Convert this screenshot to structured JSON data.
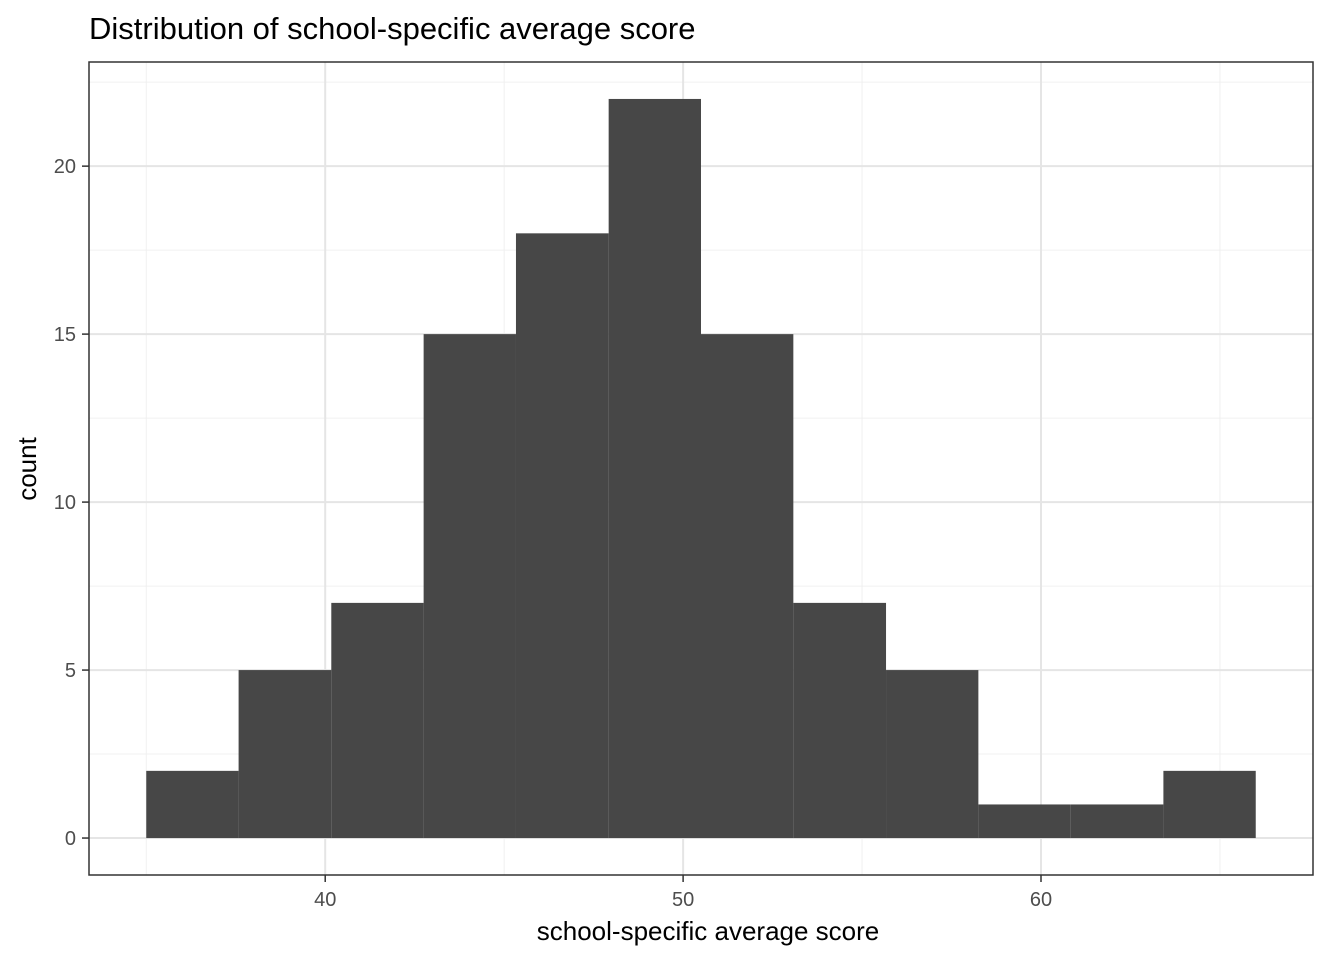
{
  "chart_data": {
    "type": "bar",
    "subtype": "histogram",
    "title": "Distribution of school-specific average score",
    "xlabel": "school-specific average score",
    "ylabel": "count",
    "bin_width": 2.583,
    "bins": [
      {
        "x0": 35.0,
        "x1": 37.58,
        "count": 2
      },
      {
        "x0": 37.58,
        "x1": 40.17,
        "count": 5
      },
      {
        "x0": 40.17,
        "x1": 42.75,
        "count": 7
      },
      {
        "x0": 42.75,
        "x1": 45.33,
        "count": 15
      },
      {
        "x0": 45.33,
        "x1": 47.92,
        "count": 18
      },
      {
        "x0": 47.92,
        "x1": 50.5,
        "count": 22
      },
      {
        "x0": 50.5,
        "x1": 53.08,
        "count": 15
      },
      {
        "x0": 53.08,
        "x1": 55.67,
        "count": 7
      },
      {
        "x0": 55.67,
        "x1": 58.25,
        "count": 5
      },
      {
        "x0": 58.25,
        "x1": 60.83,
        "count": 1
      },
      {
        "x0": 60.83,
        "x1": 63.42,
        "count": 1
      },
      {
        "x0": 63.42,
        "x1": 66.0,
        "count": 2
      }
    ],
    "xlim": [
      33.4,
      67.6
    ],
    "ylim": [
      -1.1,
      23.1
    ],
    "x_ticks": [
      40,
      50,
      60
    ],
    "x_tick_labels": [
      "40",
      "50",
      "60"
    ],
    "x_minor_gridlines": [
      35,
      45,
      55,
      65
    ],
    "y_ticks": [
      0,
      5,
      10,
      15,
      20
    ],
    "y_tick_labels": [
      "0",
      "5",
      "10",
      "15",
      "20"
    ],
    "y_minor_gridlines": [
      2.5,
      7.5,
      12.5,
      17.5,
      22.5
    ],
    "grid": true,
    "legend": "none",
    "colors": {
      "bar_fill": "#474747",
      "panel_border": "#333333",
      "grid_major": "#e5e5e5",
      "grid_minor": "#f0f0f0",
      "tick_text": "#4d4d4d"
    }
  }
}
